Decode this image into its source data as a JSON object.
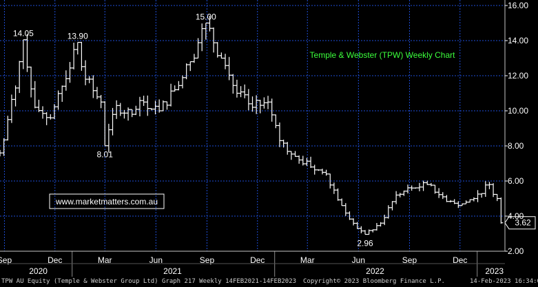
{
  "chart_data": {
    "type": "ohlc-bar",
    "title": "Temple & Webster (TPW) Weekly Chart",
    "watermark": "www.marketmatters.com.au",
    "ylim": [
      2,
      16
    ],
    "yticks": [
      "2.00",
      "4.00",
      "6.00",
      "8.00",
      "10.00",
      "12.00",
      "14.00",
      "16.00"
    ],
    "xlim": [
      "2020-08-24",
      "2023-02-20"
    ],
    "month_ticks": [
      {
        "label": "Sep",
        "date": "2020-09-01"
      },
      {
        "label": "Dec",
        "date": "2020-12-01"
      },
      {
        "label": "Mar",
        "date": "2021-03-01"
      },
      {
        "label": "Jun",
        "date": "2021-06-01"
      },
      {
        "label": "Sep",
        "date": "2021-09-01"
      },
      {
        "label": "Dec",
        "date": "2021-12-01"
      },
      {
        "label": "Mar",
        "date": "2022-03-01"
      },
      {
        "label": "Jun",
        "date": "2022-06-01"
      },
      {
        "label": "Sep",
        "date": "2022-09-01"
      },
      {
        "label": "Dec",
        "date": "2022-12-01"
      }
    ],
    "year_ticks": [
      {
        "label": "2020",
        "date": "2020-11-01"
      },
      {
        "label": "2021",
        "date": "2021-07-01"
      },
      {
        "label": "2022",
        "date": "2022-07-01"
      },
      {
        "label": "2023",
        "date": "2023-02-01"
      }
    ],
    "year_separators": [
      "2021-01-01",
      "2022-01-01",
      "2023-01-01"
    ],
    "anchors": [
      {
        "date": "2020-08-24",
        "price": 7.6
      },
      {
        "date": "2020-09-07",
        "price": 9.5
      },
      {
        "date": "2020-09-21",
        "price": 11.3
      },
      {
        "date": "2020-10-05",
        "price": 14.05
      },
      {
        "date": "2020-10-26",
        "price": 10.2
      },
      {
        "date": "2020-11-23",
        "price": 9.6
      },
      {
        "date": "2020-12-14",
        "price": 11.4
      },
      {
        "date": "2021-01-11",
        "price": 13.9
      },
      {
        "date": "2021-01-25",
        "price": 11.8
      },
      {
        "date": "2021-02-22",
        "price": 10.5
      },
      {
        "date": "2021-03-01",
        "price": 8.01
      },
      {
        "date": "2021-03-22",
        "price": 10.3
      },
      {
        "date": "2021-04-19",
        "price": 9.8
      },
      {
        "date": "2021-05-10",
        "price": 10.5
      },
      {
        "date": "2021-06-07",
        "price": 10.0
      },
      {
        "date": "2021-07-05",
        "price": 11.2
      },
      {
        "date": "2021-08-02",
        "price": 12.8
      },
      {
        "date": "2021-08-30",
        "price": 15.0
      },
      {
        "date": "2021-09-27",
        "price": 13.0
      },
      {
        "date": "2021-10-25",
        "price": 11.0
      },
      {
        "date": "2021-11-22",
        "price": 10.2
      },
      {
        "date": "2021-12-20",
        "price": 10.5
      },
      {
        "date": "2022-01-10",
        "price": 8.3
      },
      {
        "date": "2022-02-07",
        "price": 7.4
      },
      {
        "date": "2022-03-07",
        "price": 6.8
      },
      {
        "date": "2022-04-04",
        "price": 6.4
      },
      {
        "date": "2022-05-02",
        "price": 4.6
      },
      {
        "date": "2022-05-30",
        "price": 3.3
      },
      {
        "date": "2022-06-13",
        "price": 2.96
      },
      {
        "date": "2022-07-11",
        "price": 3.6
      },
      {
        "date": "2022-08-08",
        "price": 5.2
      },
      {
        "date": "2022-09-05",
        "price": 5.6
      },
      {
        "date": "2022-10-03",
        "price": 5.8
      },
      {
        "date": "2022-10-31",
        "price": 5.1
      },
      {
        "date": "2022-11-28",
        "price": 4.6
      },
      {
        "date": "2022-12-26",
        "price": 5.0
      },
      {
        "date": "2023-01-23",
        "price": 5.8
      },
      {
        "date": "2023-02-06",
        "price": 5.0
      },
      {
        "date": "2023-02-13",
        "price": 3.62
      }
    ],
    "annotations": [
      {
        "text": "14.05",
        "date": "2020-10-05",
        "price": 14.05,
        "pos": "above"
      },
      {
        "text": "13.90",
        "date": "2021-01-11",
        "price": 13.9,
        "pos": "above"
      },
      {
        "text": "8.01",
        "date": "2021-03-01",
        "price": 8.01,
        "pos": "below"
      },
      {
        "text": "15.00",
        "date": "2021-08-30",
        "price": 15.0,
        "pos": "above"
      },
      {
        "text": "2.96",
        "date": "2022-06-13",
        "price": 2.96,
        "pos": "below"
      }
    ],
    "last_price": {
      "value": 3.62,
      "label": "3.62"
    },
    "colors": {
      "background": "#000000",
      "grid": "#1e4ed8",
      "bars": "#ffffff",
      "title": "#3cff3c",
      "watermark": "#ffffff",
      "watermark_border": "#ffffff",
      "axis_text": "#ffffff"
    }
  },
  "footer": {
    "left": "TPW AU Equity (Temple & Webster Group Ltd) Graph 217  Weekly 14FEB2021-14FEB2023",
    "center": "Copyright© 2023 Bloomberg Finance L.P.",
    "right": "14-Feb-2023 16:34:08"
  }
}
